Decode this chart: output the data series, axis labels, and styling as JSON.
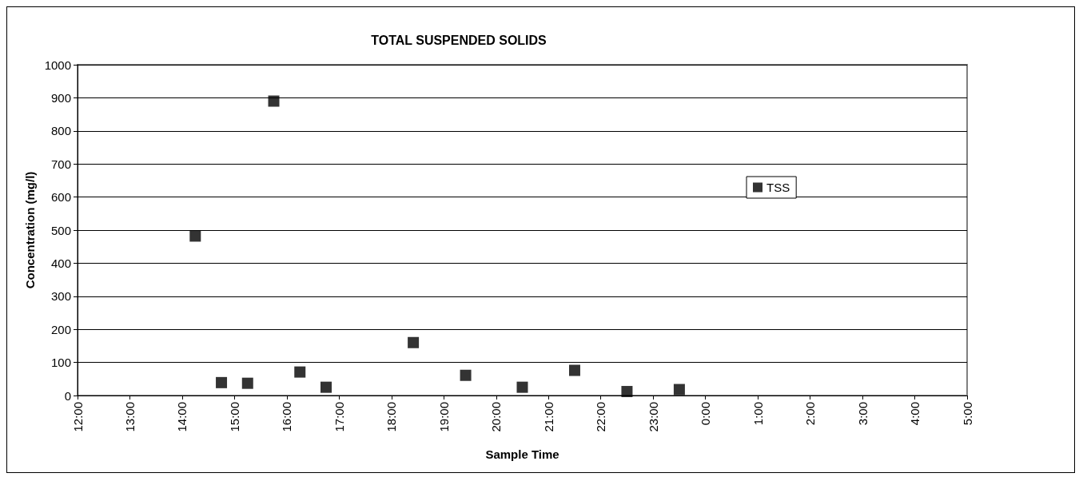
{
  "chart_data": {
    "type": "scatter",
    "title": "TOTAL SUSPENDED SOLIDS",
    "xlabel": "Sample Time",
    "ylabel": "Concentration (mg/l)",
    "x": [
      "--01-01T14:15",
      "--01-01T14:45",
      "--01-01T15:15",
      "--01-01T15:45",
      "--01-01T16:15",
      "--01-01T16:45",
      "--01-01T18:25",
      "--01-01T19:25",
      "--01-01T20:30",
      "--01-01T21:30",
      "--01-01T22:30",
      "--01-01T23:30"
    ],
    "series": [
      {
        "name": "TSS",
        "color": "#000000",
        "values": [
          482,
          39,
          37,
          890,
          71,
          25,
          160,
          61,
          25,
          76,
          12,
          18
        ]
      }
    ],
    "xlim": [
      "--01-01T12:00",
      "--01-02T05:00"
    ],
    "xticks": [
      {
        "value": "--01-01T12:00",
        "label": "12:00"
      },
      {
        "value": "--01-01T13:00",
        "label": "13:00"
      },
      {
        "value": "--01-01T14:00",
        "label": "14:00"
      },
      {
        "value": "--01-01T15:00",
        "label": "15:00"
      },
      {
        "value": "--01-01T16:00",
        "label": "16:00"
      },
      {
        "value": "--01-01T17:00",
        "label": "17:00"
      },
      {
        "value": "--01-01T18:00",
        "label": "18:00"
      },
      {
        "value": "--01-01T19:00",
        "label": "19:00"
      },
      {
        "value": "--01-01T20:00",
        "label": "20:00"
      },
      {
        "value": "--01-01T21:00",
        "label": "21:00"
      },
      {
        "value": "--01-01T22:00",
        "label": "22:00"
      },
      {
        "value": "--01-01T23:00",
        "label": "23:00"
      },
      {
        "value": "--01-02T00:00",
        "label": "0:00"
      },
      {
        "value": "--01-02T01:00",
        "label": "1:00"
      },
      {
        "value": "--01-02T02:00",
        "label": "2:00"
      },
      {
        "value": "--01-02T03:00",
        "label": "3:00"
      },
      {
        "value": "--01-02T04:00",
        "label": "4:00"
      },
      {
        "value": "--01-02T05:00",
        "label": "5:00"
      }
    ],
    "ylim": [
      0,
      1000
    ],
    "yticks": [
      0,
      100,
      200,
      300,
      400,
      500,
      600,
      700,
      800,
      900,
      1000
    ],
    "grid": "y",
    "legend": "right",
    "marker": "square"
  }
}
